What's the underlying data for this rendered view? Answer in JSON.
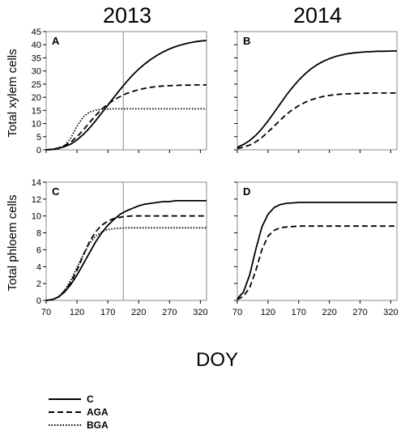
{
  "figure": {
    "col_titles": [
      "2013",
      "2014"
    ],
    "row_ylabels": [
      "Total xylem cells",
      "Total phloem cells"
    ],
    "shared_xlabel": "DOY"
  },
  "legend": {
    "placement": "bottom-left",
    "entries": [
      {
        "name": "C",
        "style": "solid"
      },
      {
        "name": "AGA",
        "style": "dashed"
      },
      {
        "name": "BGA",
        "style": "dotted"
      }
    ]
  },
  "chart_data": [
    {
      "panel": "A",
      "type": "line",
      "ylim": [
        0,
        45
      ],
      "yticks": [
        0,
        5,
        10,
        15,
        20,
        25,
        30,
        35,
        40,
        45
      ],
      "xlim": [
        70,
        330
      ],
      "xticks": [
        70,
        120,
        170,
        220,
        270,
        320
      ],
      "show_xtick_labels": false,
      "vline": 195,
      "x": [
        70,
        80,
        90,
        100,
        110,
        120,
        130,
        140,
        150,
        160,
        170,
        180,
        190,
        200,
        210,
        220,
        230,
        240,
        250,
        260,
        270,
        280,
        290,
        300,
        310,
        320,
        330
      ],
      "series": [
        {
          "name": "C",
          "style": "solid",
          "values": [
            0,
            0.2,
            0.6,
            1.2,
            2.2,
            3.8,
            5.8,
            8.2,
            11.0,
            14.0,
            17.0,
            20.0,
            23.0,
            25.8,
            28.4,
            30.7,
            32.7,
            34.5,
            36.0,
            37.3,
            38.4,
            39.3,
            40.0,
            40.6,
            41.1,
            41.4,
            41.6
          ]
        },
        {
          "name": "AGA",
          "style": "dashed",
          "values": [
            0,
            0.2,
            0.7,
            1.6,
            3.0,
            5.0,
            7.5,
            10.3,
            13.0,
            15.4,
            17.4,
            19.0,
            20.3,
            21.4,
            22.2,
            22.9,
            23.4,
            23.8,
            24.1,
            24.3,
            24.4,
            24.5,
            24.6,
            24.6,
            24.7,
            24.7,
            24.7
          ]
        },
        {
          "name": "BGA",
          "style": "dotted",
          "values": [
            0,
            0.1,
            0.4,
            1.5,
            4.5,
            9.0,
            12.5,
            14.3,
            15.1,
            15.4,
            15.5,
            15.6,
            15.6,
            15.6,
            15.6,
            15.6,
            15.6,
            15.6,
            15.6,
            15.6,
            15.6,
            15.6,
            15.6,
            15.6,
            15.6,
            15.6,
            15.6
          ]
        }
      ]
    },
    {
      "panel": "B",
      "type": "line",
      "ylim": [
        0,
        45
      ],
      "yticks": [
        0,
        5,
        10,
        15,
        20,
        25,
        30,
        35,
        40,
        45
      ],
      "show_ytick_labels": false,
      "xlim": [
        70,
        330
      ],
      "xticks": [
        70,
        120,
        170,
        220,
        270,
        320
      ],
      "show_xtick_labels": false,
      "x": [
        70,
        80,
        90,
        100,
        110,
        120,
        130,
        140,
        150,
        160,
        170,
        180,
        190,
        200,
        210,
        220,
        230,
        240,
        250,
        260,
        270,
        280,
        290,
        300,
        310,
        320,
        330
      ],
      "series": [
        {
          "name": "C",
          "style": "solid",
          "values": [
            1.0,
            2.0,
            3.5,
            5.5,
            8.0,
            11.0,
            14.2,
            17.5,
            20.8,
            23.8,
            26.5,
            28.8,
            30.8,
            32.4,
            33.7,
            34.7,
            35.5,
            36.1,
            36.6,
            36.9,
            37.1,
            37.3,
            37.4,
            37.5,
            37.5,
            37.6,
            37.6
          ]
        },
        {
          "name": "AGA",
          "style": "dashed",
          "values": [
            0.5,
            1.0,
            1.8,
            3.0,
            4.7,
            6.8,
            9.0,
            11.3,
            13.5,
            15.3,
            16.8,
            18.0,
            19.0,
            19.7,
            20.3,
            20.7,
            21.0,
            21.2,
            21.3,
            21.4,
            21.5,
            21.5,
            21.6,
            21.6,
            21.6,
            21.6,
            21.6
          ]
        }
      ]
    },
    {
      "panel": "C",
      "type": "line",
      "ylim": [
        0,
        14
      ],
      "yticks": [
        0,
        2,
        4,
        6,
        8,
        10,
        12,
        14
      ],
      "xlim": [
        70,
        330
      ],
      "xticks": [
        70,
        120,
        170,
        220,
        270,
        320
      ],
      "vline": 195,
      "x": [
        70,
        80,
        90,
        100,
        110,
        120,
        130,
        140,
        150,
        160,
        170,
        180,
        190,
        200,
        210,
        220,
        230,
        240,
        250,
        260,
        270,
        280,
        290,
        300,
        310,
        320,
        330
      ],
      "series": [
        {
          "name": "C",
          "style": "solid",
          "values": [
            0,
            0.1,
            0.4,
            1.0,
            1.9,
            3.0,
            4.3,
            5.6,
            6.9,
            8.0,
            8.9,
            9.6,
            10.2,
            10.6,
            10.9,
            11.2,
            11.4,
            11.5,
            11.6,
            11.7,
            11.7,
            11.8,
            11.8,
            11.8,
            11.8,
            11.8,
            11.8
          ]
        },
        {
          "name": "AGA",
          "style": "dashed",
          "values": [
            0,
            0.1,
            0.4,
            1.1,
            2.1,
            3.6,
            5.3,
            6.9,
            8.1,
            8.9,
            9.4,
            9.7,
            9.85,
            9.95,
            10.0,
            10.0,
            10.0,
            10.0,
            10.0,
            10.0,
            10.0,
            10.0,
            10.0,
            10.0,
            10.0,
            10.0,
            10.0
          ]
        },
        {
          "name": "BGA",
          "style": "dotted",
          "values": [
            0,
            0.1,
            0.4,
            1.2,
            2.4,
            3.9,
            5.4,
            6.7,
            7.6,
            8.1,
            8.4,
            8.5,
            8.55,
            8.6,
            8.6,
            8.6,
            8.6,
            8.6,
            8.6,
            8.6,
            8.6,
            8.6,
            8.6,
            8.6,
            8.6,
            8.6,
            8.6
          ]
        }
      ]
    },
    {
      "panel": "D",
      "type": "line",
      "ylim": [
        0,
        14
      ],
      "yticks": [
        0,
        2,
        4,
        6,
        8,
        10,
        12,
        14
      ],
      "show_ytick_labels": false,
      "xlim": [
        70,
        330
      ],
      "xticks": [
        70,
        120,
        170,
        220,
        270,
        320
      ],
      "x": [
        70,
        80,
        90,
        100,
        110,
        120,
        130,
        140,
        150,
        160,
        170,
        180,
        190,
        200,
        210,
        220,
        230,
        240,
        250,
        260,
        270,
        280,
        290,
        300,
        310,
        320,
        330
      ],
      "series": [
        {
          "name": "C",
          "style": "solid",
          "values": [
            0.2,
            1.0,
            3.0,
            6.0,
            8.7,
            10.2,
            11.0,
            11.35,
            11.5,
            11.55,
            11.6,
            11.6,
            11.6,
            11.6,
            11.6,
            11.6,
            11.6,
            11.6,
            11.6,
            11.6,
            11.6,
            11.6,
            11.6,
            11.6,
            11.6,
            11.6,
            11.6
          ]
        },
        {
          "name": "AGA",
          "style": "dashed",
          "values": [
            0.1,
            0.5,
            1.5,
            3.5,
            6.0,
            7.6,
            8.3,
            8.6,
            8.7,
            8.75,
            8.8,
            8.8,
            8.8,
            8.8,
            8.8,
            8.8,
            8.8,
            8.8,
            8.8,
            8.8,
            8.8,
            8.8,
            8.8,
            8.8,
            8.8,
            8.8,
            8.8
          ]
        }
      ]
    }
  ]
}
